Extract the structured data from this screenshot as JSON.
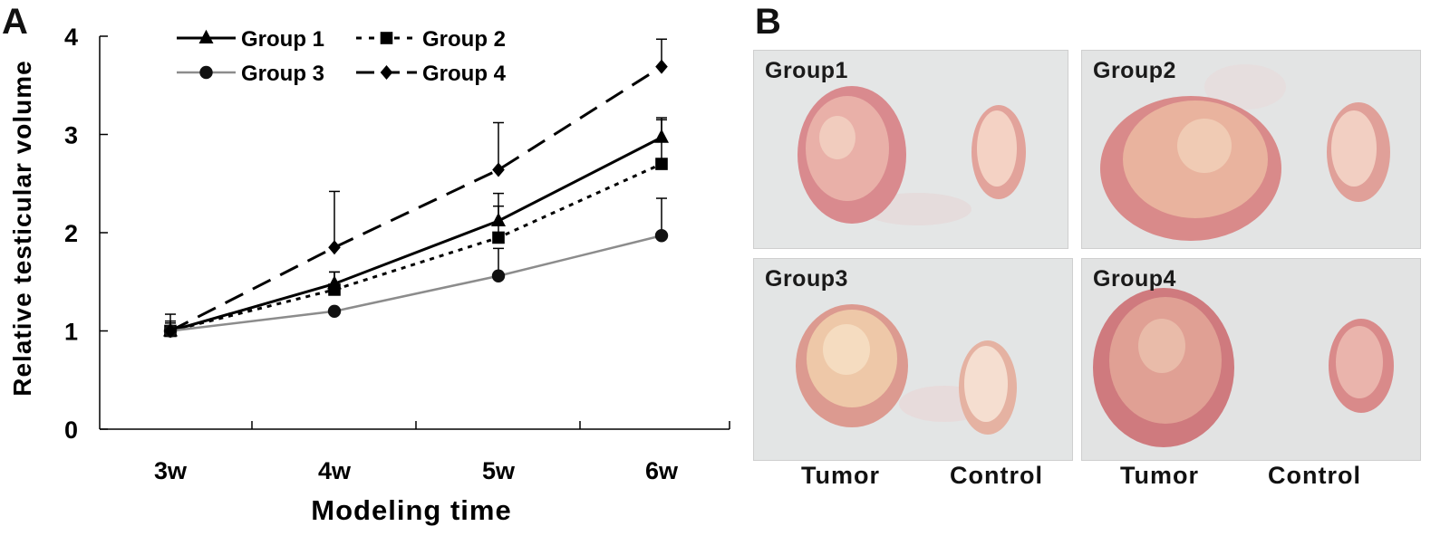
{
  "panels": {
    "a_label": "A",
    "b_label": "B"
  },
  "chart_data": {
    "type": "line",
    "title": "",
    "xlabel": "Modeling time",
    "ylabel": "Relative testicular volume",
    "categories": [
      "3w",
      "4w",
      "5w",
      "6w"
    ],
    "ylim": [
      0,
      4
    ],
    "yticks": [
      0,
      1,
      2,
      3,
      4
    ],
    "grid": false,
    "legend_position": "top-left",
    "series": [
      {
        "name": "Group 1",
        "marker": "triangle",
        "style": "solid",
        "color": "#000000",
        "values": [
          1.0,
          1.48,
          2.12,
          2.97
        ],
        "errors": [
          0.1,
          0.12,
          0.28,
          0.2
        ]
      },
      {
        "name": "Group 2",
        "marker": "square",
        "style": "dotted",
        "color": "#000000",
        "values": [
          1.0,
          1.42,
          1.95,
          2.7
        ],
        "errors": [
          0.08,
          0.18,
          0.32,
          0.45
        ]
      },
      {
        "name": "Group 3",
        "marker": "circle",
        "style": "solid",
        "color": "#8c8c8c",
        "values": [
          1.0,
          1.2,
          1.56,
          1.97
        ],
        "errors": [
          0.05,
          0.0,
          0.28,
          0.38
        ]
      },
      {
        "name": "Group 4",
        "marker": "diamond",
        "style": "dashed",
        "color": "#000000",
        "values": [
          1.0,
          1.85,
          2.64,
          3.69
        ],
        "errors": [
          0.17,
          0.57,
          0.48,
          0.28
        ]
      }
    ]
  },
  "photos": [
    {
      "label": "Group1"
    },
    {
      "label": "Group2"
    },
    {
      "label": "Group3"
    },
    {
      "label": "Group4"
    }
  ],
  "bottom_labels": [
    "Tumor",
    "Control",
    "Tumor",
    "Control"
  ]
}
